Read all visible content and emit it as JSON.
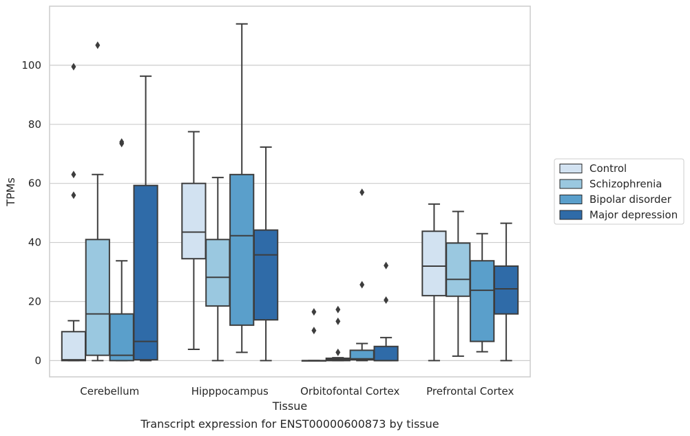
{
  "chart_data": {
    "type": "box",
    "xlabel": "Tissue",
    "ylabel": "TPMs",
    "caption": "Transcript expression for ENST00000600873 by tissue",
    "ylim": [
      -5.5,
      120
    ],
    "yticks": [
      0,
      20,
      40,
      60,
      80,
      100
    ],
    "ytick_labels": [
      "0",
      "20",
      "40",
      "60",
      "80",
      "100"
    ],
    "grid": true,
    "legend_position": "right",
    "categories": [
      "Cerebellum",
      "Hipppocampus",
      "Orbitofontal Cortex",
      "Prefrontal Cortex"
    ],
    "series": [
      {
        "name": "Control",
        "color": "#d2e2f1",
        "boxes": [
          {
            "whislo": 0,
            "q1": 0,
            "med": 0.3,
            "q3": 9.8,
            "whishi": 13.5,
            "fliers": [
              56,
              63,
              99.5
            ]
          },
          {
            "whislo": 3.8,
            "q1": 34.5,
            "med": 43.5,
            "q3": 60,
            "whishi": 77.5,
            "fliers": []
          },
          {
            "whislo": 0,
            "q1": 0,
            "med": 0,
            "q3": 0,
            "whishi": 0,
            "fliers": [
              10.2,
              16.5
            ]
          },
          {
            "whislo": 0,
            "q1": 22,
            "med": 32,
            "q3": 43.8,
            "whishi": 53,
            "fliers": []
          }
        ]
      },
      {
        "name": "Schizophrenia",
        "color": "#9ac8e0",
        "boxes": [
          {
            "whislo": 0,
            "q1": 1.8,
            "med": 15.8,
            "q3": 41,
            "whishi": 63,
            "fliers": [
              106.8
            ]
          },
          {
            "whislo": 0,
            "q1": 18.5,
            "med": 28.2,
            "q3": 41,
            "whishi": 62,
            "fliers": []
          },
          {
            "whislo": 0,
            "q1": 0,
            "med": 0.4,
            "q3": 0.8,
            "whishi": 1,
            "fliers": [
              2.8,
              13.3,
              17.3
            ]
          },
          {
            "whislo": 1.5,
            "q1": 21.8,
            "med": 27.5,
            "q3": 39.8,
            "whishi": 50.5,
            "fliers": []
          }
        ]
      },
      {
        "name": "Bipolar disorder",
        "color": "#5a9fcb",
        "boxes": [
          {
            "whislo": 0,
            "q1": 0,
            "med": 1.8,
            "q3": 15.8,
            "whishi": 33.8,
            "fliers": [
              73.5,
              74
            ]
          },
          {
            "whislo": 2.8,
            "q1": 12,
            "med": 42.3,
            "q3": 63,
            "whishi": 114,
            "fliers": []
          },
          {
            "whislo": 0,
            "q1": 0.3,
            "med": 0.6,
            "q3": 3.5,
            "whishi": 5.8,
            "fliers": [
              25.7,
              57
            ]
          },
          {
            "whislo": 3,
            "q1": 6.5,
            "med": 23.8,
            "q3": 33.8,
            "whishi": 43,
            "fliers": []
          }
        ]
      },
      {
        "name": "Major depression",
        "color": "#2f6ba8",
        "boxes": [
          {
            "whislo": 0,
            "q1": 0.3,
            "med": 6.5,
            "q3": 59.3,
            "whishi": 96.3,
            "fliers": []
          },
          {
            "whislo": 0,
            "q1": 13.8,
            "med": 35.8,
            "q3": 44.2,
            "whishi": 72.3,
            "fliers": []
          },
          {
            "whislo": 0,
            "q1": 0,
            "med": 0,
            "q3": 4.8,
            "whishi": 7.8,
            "fliers": [
              20.5,
              32.2
            ]
          },
          {
            "whislo": 0,
            "q1": 15.8,
            "med": 24.3,
            "q3": 32,
            "whishi": 46.5,
            "fliers": []
          }
        ]
      }
    ]
  }
}
